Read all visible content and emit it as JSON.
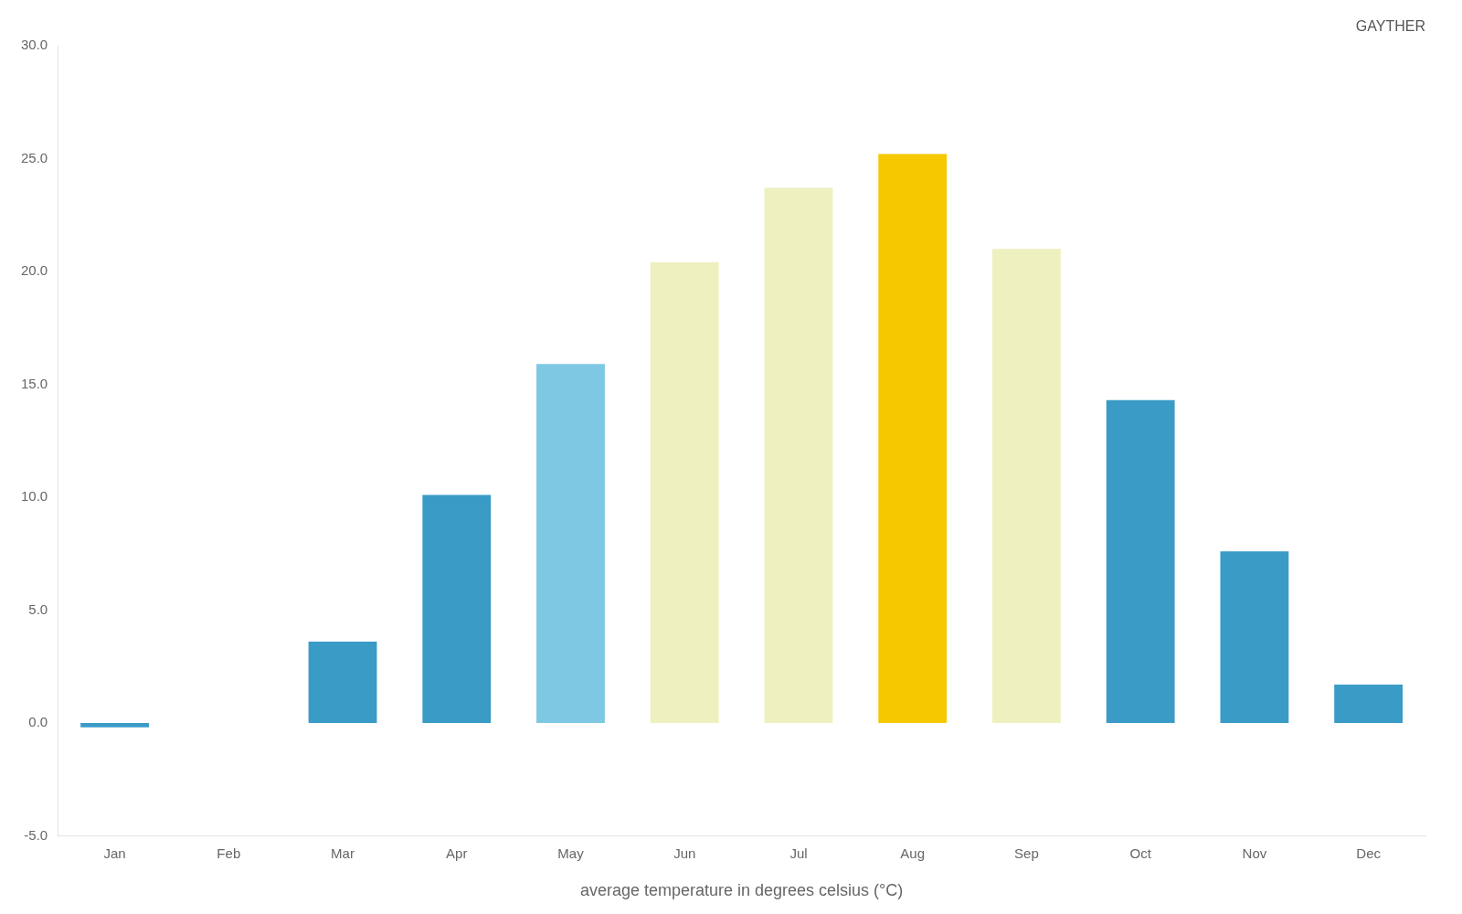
{
  "chart_data": {
    "type": "bar",
    "xlabel": "average temperature in degrees celsius (°C)",
    "annotation": "GAYTHER",
    "categories": [
      "Jan",
      "Feb",
      "Mar",
      "Apr",
      "May",
      "Jun",
      "Jul",
      "Aug",
      "Sep",
      "Oct",
      "Nov",
      "Dec"
    ],
    "values": [
      -0.2,
      0.0,
      3.6,
      10.1,
      15.9,
      20.4,
      23.7,
      25.2,
      21.0,
      14.3,
      7.6,
      1.7
    ],
    "colors": [
      "#3a9bc7",
      "#3a9bc7",
      "#3a9bc7",
      "#3a9bc7",
      "#7ec8e3",
      "#eef0c0",
      "#eef0c0",
      "#f5c800",
      "#eef0c0",
      "#3a9bc7",
      "#3a9bc7",
      "#3a9bc7"
    ],
    "ylim": [
      -5,
      30
    ],
    "yticks": [
      {
        "value": -5,
        "label": "-5.0"
      },
      {
        "value": 0,
        "label": "0.0"
      },
      {
        "value": 5,
        "label": "5.0"
      },
      {
        "value": 10,
        "label": "10.0"
      },
      {
        "value": 15,
        "label": "15.0"
      },
      {
        "value": 20,
        "label": "20.0"
      },
      {
        "value": 25,
        "label": "25.0"
      },
      {
        "value": 30,
        "label": "30.0"
      }
    ],
    "grid": false
  }
}
